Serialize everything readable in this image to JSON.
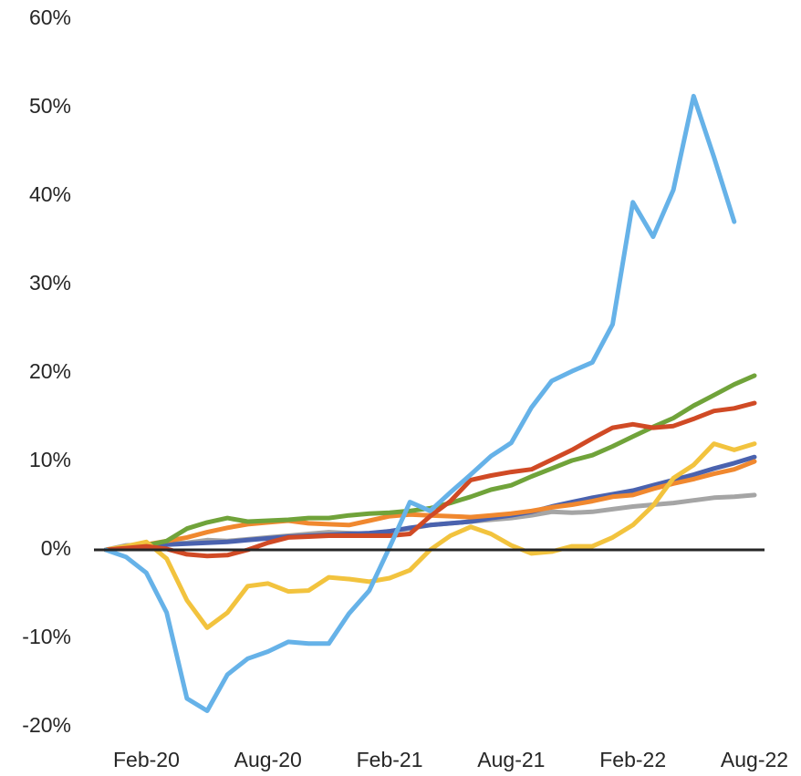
{
  "chart_data": {
    "type": "line",
    "categories": [
      null,
      null,
      "Feb-20",
      null,
      null,
      null,
      null,
      null,
      "Aug-20",
      null,
      null,
      null,
      null,
      null,
      "Feb-21",
      null,
      null,
      null,
      null,
      null,
      "Aug-21",
      null,
      null,
      null,
      null,
      null,
      "Feb-22",
      null,
      null,
      null,
      null,
      null,
      "Aug-22"
    ],
    "ylim": [
      -20,
      60
    ],
    "yticks": [
      {
        "value": -20,
        "label": "-20%"
      },
      {
        "value": -10,
        "label": "-10%"
      },
      {
        "value": 0,
        "label": "0%"
      },
      {
        "value": 10,
        "label": "10%"
      },
      {
        "value": 20,
        "label": "20%"
      },
      {
        "value": 30,
        "label": "30%"
      },
      {
        "value": 40,
        "label": "40%"
      },
      {
        "value": 50,
        "label": "50%"
      },
      {
        "value": 60,
        "label": "60%"
      }
    ],
    "series": [
      {
        "color": "#a5a5a5",
        "values": [
          0,
          0.5,
          0.6,
          0.7,
          0.8,
          1.1,
          1.0,
          1.2,
          1.4,
          1.6,
          1.8,
          2.0,
          1.9,
          1.8,
          2.1,
          2.4,
          2.8,
          3.0,
          3.2,
          3.4,
          3.6,
          3.9,
          4.3,
          4.2,
          4.3,
          4.6,
          4.9,
          5.1,
          5.3,
          5.6,
          5.9,
          6.0,
          6.2
        ]
      },
      {
        "color": "#4a62ae",
        "values": [
          0,
          0.3,
          0.5,
          0.6,
          0.7,
          0.8,
          0.9,
          1.1,
          1.3,
          1.5,
          1.6,
          1.7,
          1.8,
          1.9,
          2.1,
          2.5,
          2.8,
          3.0,
          3.2,
          3.6,
          3.9,
          4.3,
          4.9,
          5.4,
          5.9,
          6.3,
          6.7,
          7.3,
          7.9,
          8.5,
          9.2,
          9.8,
          10.5
        ]
      },
      {
        "color": "#f0882f",
        "values": [
          0,
          0.3,
          0.6,
          1.0,
          1.4,
          2.0,
          2.5,
          2.9,
          3.1,
          3.3,
          3.0,
          2.9,
          2.8,
          3.3,
          3.8,
          4.0,
          3.9,
          3.8,
          3.7,
          3.9,
          4.1,
          4.4,
          4.8,
          5.1,
          5.5,
          6.0,
          6.2,
          6.9,
          7.5,
          8.0,
          8.6,
          9.1,
          10.0
        ]
      },
      {
        "color": "#70a33a",
        "values": [
          0,
          0.3,
          0.5,
          1.0,
          2.4,
          3.1,
          3.6,
          3.2,
          3.3,
          3.4,
          3.6,
          3.6,
          3.9,
          4.1,
          4.2,
          4.4,
          4.7,
          5.3,
          6.0,
          6.8,
          7.3,
          8.3,
          9.2,
          10.1,
          10.7,
          11.7,
          12.8,
          13.9,
          14.9,
          16.3,
          17.5,
          18.7,
          19.7
        ]
      },
      {
        "color": "#f2c33e",
        "values": [
          0,
          0.4,
          0.9,
          -1.0,
          -5.7,
          -8.8,
          -7.1,
          -4.1,
          -3.8,
          -4.7,
          -4.6,
          -3.1,
          -3.3,
          -3.6,
          -3.2,
          -2.3,
          0,
          1.6,
          2.6,
          1.8,
          0.5,
          -0.4,
          -0.2,
          0.4,
          0.4,
          1.4,
          2.8,
          5.0,
          8.1,
          9.6,
          12.0,
          11.3,
          12.0
        ]
      },
      {
        "color": "#d04a25",
        "values": [
          0,
          0.2,
          0.4,
          0.1,
          -0.5,
          -0.7,
          -0.6,
          0,
          0.8,
          1.4,
          1.5,
          1.6,
          1.6,
          1.6,
          1.6,
          1.8,
          3.8,
          5.5,
          7.9,
          8.4,
          8.8,
          9.1,
          10.2,
          11.3,
          12.6,
          13.8,
          14.2,
          13.8,
          14.0,
          14.8,
          15.7,
          16.0,
          16.6
        ]
      },
      {
        "color": "#66b2e8",
        "values": [
          0,
          -0.8,
          -2.6,
          -7.1,
          -16.8,
          -18.2,
          -14.1,
          -12.3,
          -11.5,
          -10.4,
          -10.6,
          -10.6,
          -7.2,
          -4.6,
          0.3,
          5.4,
          4.4,
          6.5,
          8.5,
          10.6,
          12.1,
          16.1,
          19.1,
          20.2,
          21.2,
          25.5,
          39.3,
          35.4,
          40.7,
          51.3,
          44.4,
          37.1,
          null
        ]
      }
    ]
  }
}
